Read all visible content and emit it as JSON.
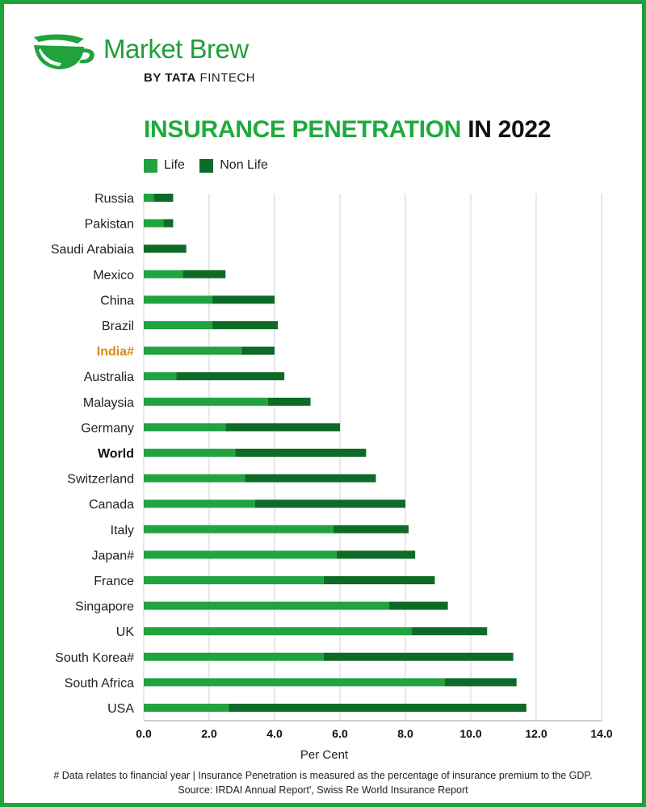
{
  "brand": {
    "name": "Market Brew",
    "sub_prefix": "BY ",
    "sub_tata": "TATA",
    "sub_suffix": " FINTECH"
  },
  "title": {
    "green": "INSURANCE PENETRATION",
    "black": " IN 2022"
  },
  "colors": {
    "life": "#21a33f",
    "nonlife": "#0e6b27",
    "india_label": "#d98b16",
    "grid": "#d0d0d0",
    "frame": "#1fa33a"
  },
  "chart_data": {
    "type": "bar",
    "orientation": "horizontal",
    "stacked": true,
    "title": "INSURANCE PENETRATION IN 2022",
    "xlabel": "Per Cent",
    "ylabel": "",
    "xlim": [
      0,
      14
    ],
    "ticks": [
      "0.0",
      "2.0",
      "4.0",
      "6.0",
      "8.0",
      "10.0",
      "12.0",
      "14.0"
    ],
    "legend": [
      "Life",
      "Non Life"
    ],
    "legend_position": "top-left",
    "grid": true,
    "categories": [
      "Russia",
      "Pakistan",
      "Saudi Arabiaia",
      "Mexico",
      "China",
      "Brazil",
      "India#",
      "Australia",
      "Malaysia",
      "Germany",
      "World",
      "Switzerland",
      "Canada",
      "Italy",
      "Japan#",
      "France",
      "Singapore",
      "UK",
      "South Korea#",
      "South Africa",
      "USA"
    ],
    "series": [
      {
        "name": "Life",
        "values": [
          0.3,
          0.6,
          0.0,
          1.2,
          2.1,
          2.1,
          3.0,
          1.0,
          3.8,
          2.5,
          2.8,
          3.1,
          3.4,
          5.8,
          5.9,
          5.5,
          7.5,
          8.2,
          5.5,
          9.2,
          2.6
        ]
      },
      {
        "name": "Non Life",
        "values": [
          0.6,
          0.3,
          1.3,
          1.3,
          1.9,
          2.0,
          1.0,
          3.3,
          1.3,
          3.5,
          4.0,
          4.0,
          4.6,
          2.3,
          2.4,
          3.4,
          1.8,
          2.3,
          5.8,
          2.2,
          9.1
        ]
      }
    ],
    "highlight": {
      "India#": "orange",
      "World": "bold"
    }
  },
  "footnote": {
    "line1": "# Data relates to financial year | Insurance Penetration is measured as the percentage of insurance premium to the GDP.",
    "line2": "Source: IRDAI Annual Report', Swiss Re World Insurance Report"
  }
}
